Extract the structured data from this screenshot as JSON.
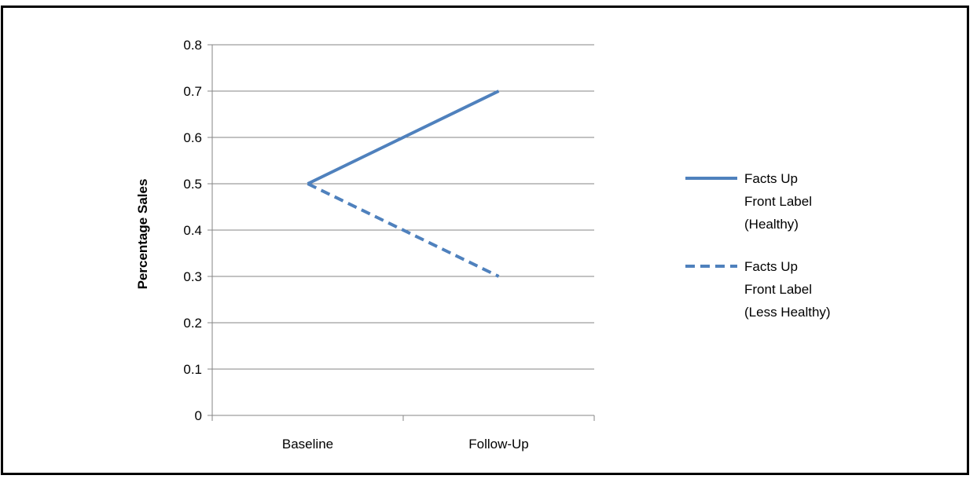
{
  "chart_data": {
    "type": "line",
    "title": "",
    "xlabel": "",
    "ylabel": "Percentage Sales",
    "categories": [
      "Baseline",
      "Follow-Up"
    ],
    "ylim": [
      0,
      0.8
    ],
    "yticks": [
      "0",
      "0.1",
      "0.2",
      "0.3",
      "0.4",
      "0.5",
      "0.6",
      "0.7",
      "0.8"
    ],
    "grid": true,
    "legend_position": "right",
    "series": [
      {
        "name_lines": [
          "Facts Up",
          "Front Label",
          "(Healthy)"
        ],
        "values": [
          0.5,
          0.7
        ],
        "color": "#4F81BD",
        "style": "solid"
      },
      {
        "name_lines": [
          "Facts Up",
          "Front  Label",
          "(Less Healthy)"
        ],
        "values": [
          0.5,
          0.3
        ],
        "color": "#4F81BD",
        "style": "dashed"
      }
    ]
  }
}
